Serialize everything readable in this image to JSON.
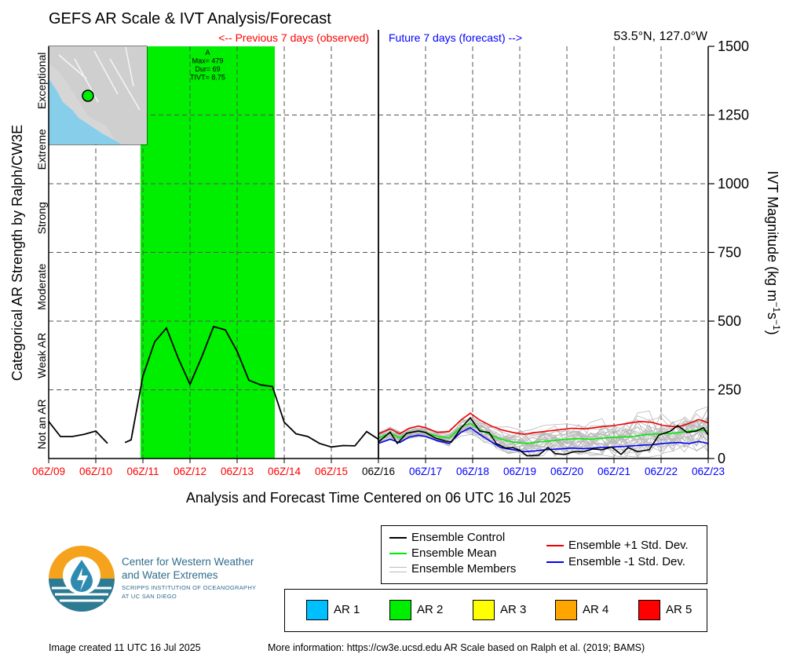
{
  "chart_data": {
    "type": "line",
    "title": "GEFS AR Scale & IVT Analysis/Forecast",
    "location": "53.5°N, 127.0°W",
    "previous_label": "<-- Previous 7 days (observed)",
    "future_label": "Future 7 days (forecast) -->",
    "xlabel": "Analysis and Forecast Time Centered on 06 UTC 16 Jul 2025",
    "ylabel_left": "Categorical AR Strength by Ralph/CW3E",
    "ylabel_right": "IVT Magnitude (kg m-1s-1)",
    "ylim": [
      0,
      1500
    ],
    "xlim_days": [
      9,
      23
    ],
    "x_ticks": [
      {
        "label": "06Z/09",
        "day": 9,
        "color": "#ff0000"
      },
      {
        "label": "06Z/10",
        "day": 10,
        "color": "#ff0000"
      },
      {
        "label": "06Z/11",
        "day": 11,
        "color": "#ff0000"
      },
      {
        "label": "06Z/12",
        "day": 12,
        "color": "#ff0000"
      },
      {
        "label": "06Z/13",
        "day": 13,
        "color": "#ff0000"
      },
      {
        "label": "06Z/14",
        "day": 14,
        "color": "#ff0000"
      },
      {
        "label": "06Z/15",
        "day": 15,
        "color": "#ff0000"
      },
      {
        "label": "06Z/16",
        "day": 16,
        "color": "#000000"
      },
      {
        "label": "06Z/17",
        "day": 17,
        "color": "#0000ff"
      },
      {
        "label": "06Z/18",
        "day": 18,
        "color": "#0000ff"
      },
      {
        "label": "06Z/19",
        "day": 19,
        "color": "#0000ff"
      },
      {
        "label": "06Z/20",
        "day": 20,
        "color": "#0000ff"
      },
      {
        "label": "06Z/21",
        "day": 21,
        "color": "#0000ff"
      },
      {
        "label": "06Z/22",
        "day": 22,
        "color": "#0000ff"
      },
      {
        "label": "06Z/23",
        "day": 23,
        "color": "#0000ff"
      }
    ],
    "y_ticks": [
      0,
      250,
      500,
      750,
      1000,
      1250,
      1500
    ],
    "categories_left": [
      {
        "label": "Not an AR",
        "from": 0,
        "to": 250
      },
      {
        "label": "Weak AR",
        "from": 250,
        "to": 500
      },
      {
        "label": "Moderate",
        "from": 500,
        "to": 750
      },
      {
        "label": "Strong",
        "from": 750,
        "to": 1000
      },
      {
        "label": "Extreme",
        "from": 1000,
        "to": 1250
      },
      {
        "label": "Exceptional",
        "from": 1250,
        "to": 1500
      }
    ],
    "ar_event": {
      "category": "AR 2",
      "start_day": 10.95,
      "end_day": 13.8,
      "annotation": [
        "A",
        "Max= 479",
        "Dur= 69",
        "TIVT= 8.75"
      ]
    },
    "now_day": 16,
    "grid": true,
    "observed_series": {
      "name": "Ensemble Control",
      "segments": [
        [
          [
            9.0,
            135
          ],
          [
            9.25,
            80
          ],
          [
            9.5,
            80
          ],
          [
            9.75,
            88
          ],
          [
            10.0,
            100
          ],
          [
            10.25,
            55
          ]
        ],
        [
          [
            10.62,
            58
          ],
          [
            10.75,
            68
          ],
          [
            11.0,
            300
          ],
          [
            11.25,
            425
          ],
          [
            11.5,
            475
          ],
          [
            11.75,
            365
          ],
          [
            12.0,
            270
          ],
          [
            12.25,
            370
          ],
          [
            12.5,
            480
          ],
          [
            12.75,
            468
          ],
          [
            13.0,
            390
          ],
          [
            13.25,
            285
          ],
          [
            13.5,
            268
          ],
          [
            13.75,
            262
          ],
          [
            14.0,
            132
          ],
          [
            14.25,
            90
          ],
          [
            14.5,
            80
          ],
          [
            14.75,
            55
          ],
          [
            15.0,
            42
          ],
          [
            15.25,
            47
          ],
          [
            15.5,
            46
          ],
          [
            15.75,
            98
          ],
          [
            16.0,
            70
          ]
        ]
      ]
    },
    "forecast_series": [
      {
        "name": "Ensemble Control",
        "color": "#000000",
        "points": [
          [
            16,
            60
          ],
          [
            16.25,
            96
          ],
          [
            16.4,
            55
          ],
          [
            16.6,
            92
          ],
          [
            16.85,
            100
          ],
          [
            17,
            95
          ],
          [
            17.2,
            75
          ],
          [
            17.4,
            65
          ],
          [
            17.55,
            60
          ],
          [
            17.75,
            110
          ],
          [
            17.95,
            148
          ],
          [
            18.15,
            100
          ],
          [
            18.35,
            95
          ],
          [
            18.5,
            55
          ],
          [
            18.7,
            38
          ],
          [
            18.85,
            40
          ],
          [
            19.0,
            30
          ],
          [
            19.15,
            10
          ],
          [
            19.4,
            12
          ],
          [
            19.6,
            40
          ],
          [
            19.75,
            18
          ],
          [
            19.95,
            15
          ],
          [
            20.15,
            25
          ],
          [
            20.35,
            25
          ],
          [
            20.55,
            35
          ],
          [
            20.75,
            32
          ],
          [
            20.95,
            42
          ],
          [
            21.15,
            15
          ],
          [
            21.3,
            40
          ],
          [
            21.5,
            25
          ],
          [
            21.75,
            32
          ],
          [
            21.95,
            85
          ],
          [
            22.2,
            100
          ],
          [
            22.35,
            120
          ],
          [
            22.55,
            95
          ],
          [
            22.75,
            100
          ],
          [
            22.9,
            112
          ],
          [
            23.0,
            85
          ]
        ]
      },
      {
        "name": "Ensemble Mean",
        "color": "#00ee00",
        "points": [
          [
            16,
            75
          ],
          [
            16.25,
            92
          ],
          [
            16.45,
            75
          ],
          [
            16.65,
            95
          ],
          [
            16.85,
            100
          ],
          [
            17,
            95
          ],
          [
            17.25,
            80
          ],
          [
            17.5,
            75
          ],
          [
            17.8,
            120
          ],
          [
            17.95,
            128
          ],
          [
            18.15,
            105
          ],
          [
            18.4,
            85
          ],
          [
            18.6,
            70
          ],
          [
            18.85,
            60
          ],
          [
            19.15,
            55
          ],
          [
            19.4,
            60
          ],
          [
            19.7,
            65
          ],
          [
            19.95,
            70
          ],
          [
            20.25,
            72
          ],
          [
            20.5,
            70
          ],
          [
            20.8,
            75
          ],
          [
            21.1,
            78
          ],
          [
            21.4,
            80
          ],
          [
            21.7,
            88
          ],
          [
            22.0,
            90
          ],
          [
            22.3,
            92
          ],
          [
            22.6,
            100
          ],
          [
            22.8,
            105
          ],
          [
            23.0,
            100
          ]
        ]
      },
      {
        "name": "Ensemble +1 Std. Dev.",
        "color": "#ee0000",
        "points": [
          [
            16,
            90
          ],
          [
            16.25,
            108
          ],
          [
            16.45,
            90
          ],
          [
            16.65,
            110
          ],
          [
            16.85,
            118
          ],
          [
            17,
            112
          ],
          [
            17.25,
            95
          ],
          [
            17.5,
            98
          ],
          [
            17.75,
            140
          ],
          [
            17.95,
            165
          ],
          [
            18.15,
            140
          ],
          [
            18.4,
            118
          ],
          [
            18.6,
            105
          ],
          [
            18.85,
            95
          ],
          [
            19.1,
            88
          ],
          [
            19.35,
            95
          ],
          [
            19.6,
            100
          ],
          [
            19.85,
            105
          ],
          [
            20.1,
            110
          ],
          [
            20.4,
            108
          ],
          [
            20.7,
            115
          ],
          [
            21.0,
            120
          ],
          [
            21.3,
            128
          ],
          [
            21.55,
            135
          ],
          [
            21.8,
            132
          ],
          [
            22.05,
            120
          ],
          [
            22.35,
            115
          ],
          [
            22.55,
            125
          ],
          [
            22.8,
            142
          ],
          [
            23.0,
            130
          ]
        ]
      },
      {
        "name": "Ensemble -1 Std. Dev.",
        "color": "#0000ee",
        "points": [
          [
            16,
            55
          ],
          [
            16.25,
            70
          ],
          [
            16.45,
            58
          ],
          [
            16.65,
            78
          ],
          [
            16.85,
            85
          ],
          [
            17,
            80
          ],
          [
            17.25,
            65
          ],
          [
            17.5,
            55
          ],
          [
            17.75,
            95
          ],
          [
            17.95,
            112
          ],
          [
            18.15,
            88
          ],
          [
            18.4,
            60
          ],
          [
            18.6,
            40
          ],
          [
            18.85,
            32
          ],
          [
            19.1,
            25
          ],
          [
            19.35,
            28
          ],
          [
            19.6,
            33
          ],
          [
            19.85,
            35
          ],
          [
            20.1,
            38
          ],
          [
            20.4,
            36
          ],
          [
            20.7,
            40
          ],
          [
            21.0,
            42
          ],
          [
            21.3,
            45
          ],
          [
            21.55,
            48
          ],
          [
            21.8,
            50
          ],
          [
            22.05,
            55
          ],
          [
            22.35,
            58
          ],
          [
            22.6,
            55
          ],
          [
            22.8,
            62
          ],
          [
            23.0,
            55
          ]
        ]
      }
    ],
    "members_count": 30
  },
  "legend": {
    "control": "Ensemble Control",
    "mean": "Ensemble Mean",
    "members": "Ensemble Members",
    "plus_std": "Ensemble +1 Std. Dev.",
    "minus_std": "Ensemble -1 Std. Dev."
  },
  "ar_keys": [
    {
      "label": "AR 1",
      "color": "#00bfff"
    },
    {
      "label": "AR 2",
      "color": "#00ee00"
    },
    {
      "label": "AR 3",
      "color": "#ffff00"
    },
    {
      "label": "AR 4",
      "color": "#ffa500"
    },
    {
      "label": "AR 5",
      "color": "#ff0000"
    }
  ],
  "logo": {
    "line1": "Center for Western Weather",
    "line2": "and Water Extremes",
    "line3": "SCRIPPS INSTITUTION OF OCEANOGRAPHY",
    "line4": "AT UC SAN DIEGO"
  },
  "footer": {
    "created": "Image created 11 UTC 16 Jul 2025",
    "more_info": "More information: https://cw3e.ucsd.edu AR Scale based on Ralph et al. (2019; BAMS)"
  }
}
